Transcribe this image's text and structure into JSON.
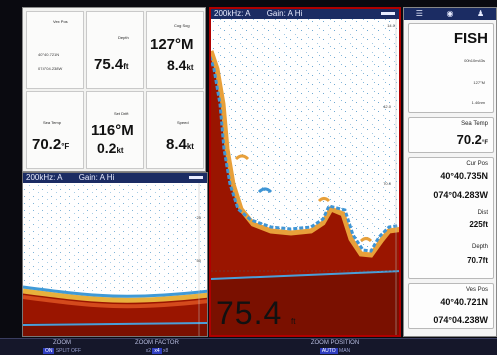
{
  "data_panel": {
    "cells": [
      {
        "label": "Vex Pos",
        "lines": [
          "40°40.721N",
          "074°04.238W"
        ]
      },
      {
        "label": "Depth",
        "value": "75.4",
        "unit": "ft"
      },
      {
        "label": "Cog Sog",
        "value": "127°M",
        "value2": "8.4",
        "unit2": "kt"
      },
      {
        "label": "Sea Temp",
        "value": "70.2",
        "unit": "°F"
      },
      {
        "label": "Set Drift",
        "value": "116°M",
        "value2": "0.2",
        "unit2": "kt"
      },
      {
        "label": "Speed",
        "value": "8.4",
        "unit": "kt"
      }
    ]
  },
  "sonar_small": {
    "freq": "200kHz: A",
    "gain": "Gain: A Hi",
    "scale": [
      "25",
      "50"
    ]
  },
  "sonar_main": {
    "freq": "200kHz: A",
    "gain": "Gain: A Hi",
    "scale": [
      "14.0",
      "42.0",
      "70.0"
    ],
    "depth_value": "75.4",
    "depth_unit": "ft"
  },
  "right_panel": {
    "fish": {
      "title": "FISH",
      "sub1": "00h10m43s",
      "sub2": "127°M",
      "sub3": "1.46nm"
    },
    "sea_temp": {
      "label": "Sea Temp",
      "value": "70.2",
      "unit": "°F"
    },
    "cur_pos": {
      "label": "Cur Pos",
      "lat": "40°40.735N",
      "lon": "074°04.283W"
    },
    "dist": {
      "label": "Dist",
      "value": "225ft"
    },
    "depth": {
      "label": "Depth",
      "value": "70.7ft"
    },
    "ves_pos": {
      "label": "Ves Pos",
      "lat": "40°40.721N",
      "lon": "074°04.238W"
    }
  },
  "softkeys": [
    {
      "top": "ZOOM",
      "bottom": [
        "ON",
        "SPLIT",
        "OFF"
      ],
      "active": 0
    },
    {
      "top": "ZOOM FACTOR",
      "bottom": [
        "x2",
        "x4",
        "x8"
      ],
      "active": 1
    },
    {
      "top": "ZOOM POSITION",
      "bottom": [
        "AUTO",
        "MAN"
      ],
      "active": 0
    }
  ],
  "colors": {
    "title_bar": "#1b2c63",
    "bottom_red": "#9a1500",
    "highlight_border": "#b00000"
  }
}
